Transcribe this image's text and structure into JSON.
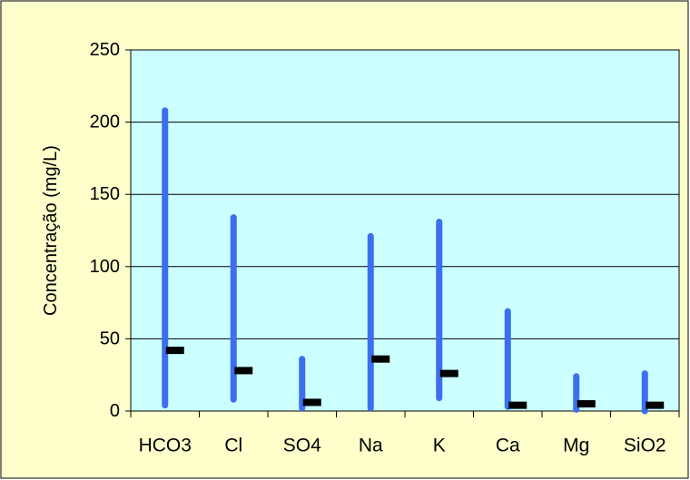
{
  "chart_data": {
    "type": "bar",
    "title": "",
    "xlabel": "",
    "ylabel": "Concentração (mg/L)",
    "ylim": [
      0,
      250
    ],
    "yticks": [
      0,
      50,
      100,
      150,
      200,
      250
    ],
    "grid": true,
    "legend": "none",
    "categories": [
      "HCO3",
      "Cl",
      "SO4",
      "Na",
      "K",
      "Ca",
      "Mg",
      "SiO2"
    ],
    "series": [
      {
        "values": [
          4,
          8,
          2,
          2,
          9,
          3,
          1,
          0
        ]
      },
      {
        "values": [
          208,
          134,
          36,
          121,
          131,
          69,
          24,
          26
        ]
      },
      {
        "values": [
          42,
          28,
          6,
          36,
          26,
          4,
          5,
          4
        ]
      }
    ]
  },
  "colors": {
    "page_background": "#ffffcc",
    "plot_background": "#ccffff",
    "range_bar": "#3b6ff0",
    "median_marker": "#000000",
    "gridline": "#000000"
  }
}
